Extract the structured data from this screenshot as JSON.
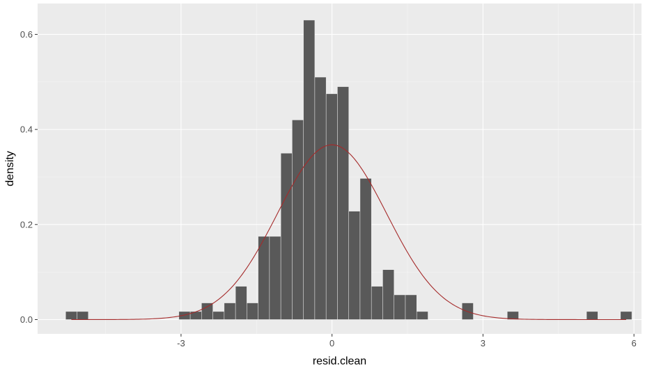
{
  "chart_data": {
    "type": "bar",
    "xlabel": "resid.clean",
    "ylabel": "density",
    "xlim": [
      -5.85,
      6.15
    ],
    "ylim": [
      -0.03,
      0.665
    ],
    "x_ticks": [
      -3,
      0,
      3,
      6
    ],
    "x_tick_labels": [
      "-3",
      "0",
      "3",
      "6"
    ],
    "y_ticks": [
      0.0,
      0.2,
      0.4,
      0.6
    ],
    "y_tick_labels": [
      "0.0",
      "0.2",
      "0.4",
      "0.6"
    ],
    "grid": true,
    "bin_width": 0.225,
    "histogram": {
      "bin_centers": [
        -5.18,
        -4.955,
        -2.93,
        -2.705,
        -2.48,
        -2.255,
        -2.03,
        -1.805,
        -1.58,
        -1.355,
        -1.13,
        -0.905,
        -0.68,
        -0.455,
        -0.23,
        -0.005,
        0.22,
        0.445,
        0.67,
        0.895,
        1.12,
        1.345,
        1.57,
        1.795,
        2.02,
        2.695,
        3.595,
        5.17,
        5.845
      ],
      "densities": [
        0.017,
        0.017,
        0.017,
        0.017,
        0.035,
        0.017,
        0.035,
        0.07,
        0.035,
        0.175,
        0.175,
        0.35,
        0.42,
        0.63,
        0.51,
        0.475,
        0.49,
        0.228,
        0.297,
        0.07,
        0.105,
        0.052,
        0.052,
        0.017,
        0.0,
        0.035,
        0.017,
        0.017,
        0.017
      ]
    },
    "density_curve": {
      "type": "normal",
      "mean": 0.0,
      "sd": 1.085
    },
    "colors": {
      "panel_background": "#ebebeb",
      "grid_major": "#ffffff",
      "grid_minor": "#f5f5f5",
      "bar_fill": "#595959",
      "bar_outline": "#ebebeb",
      "curve": "#a52a2a",
      "tick": "#333333"
    }
  }
}
